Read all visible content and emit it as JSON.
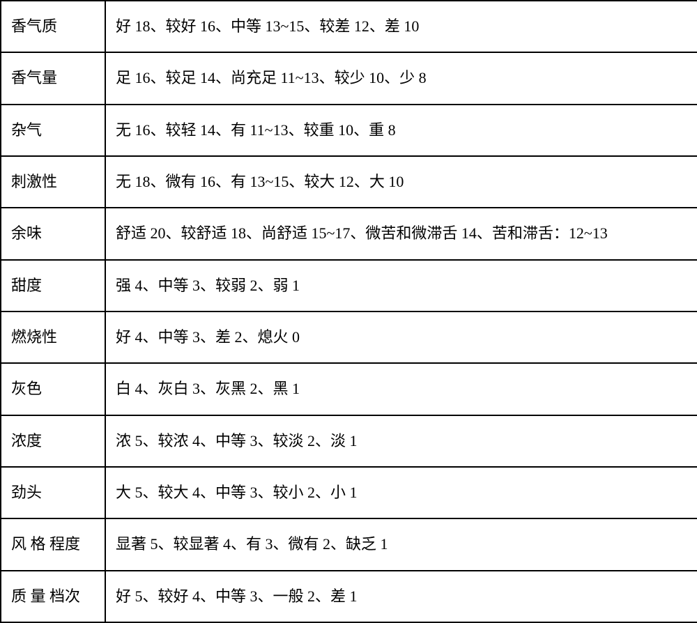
{
  "table": {
    "border_color": "#000000",
    "background_color": "#ffffff",
    "text_color": "#000000",
    "font_size": 22,
    "rows": [
      {
        "label": "香气质",
        "value": "好 18、较好 16、中等 13~15、较差 12、差 10"
      },
      {
        "label": "香气量",
        "value": "足 16、较足 14、尚充足 11~13、较少 10、少 8"
      },
      {
        "label": "杂气",
        "value": "无 16、较轻 14、有 11~13、较重 10、重 8"
      },
      {
        "label": "刺激性",
        "value": "无 18、微有 16、有 13~15、较大 12、大 10"
      },
      {
        "label": "余味",
        "value": "舒适 20、较舒适 18、尚舒适 15~17、微苦和微滞舌 14、苦和滞舌：12~13"
      },
      {
        "label": "甜度",
        "value": "强 4、中等 3、较弱 2、弱 1"
      },
      {
        "label": "燃烧性",
        "value": "好 4、中等 3、差 2、熄火 0"
      },
      {
        "label": "灰色",
        "value": "白 4、灰白 3、灰黑 2、黑 1"
      },
      {
        "label": "浓度",
        "value": "浓 5、较浓 4、中等 3、较淡 2、淡 1"
      },
      {
        "label": "劲头",
        "value": "大 5、较大 4、中等 3、较小 2、小 1"
      },
      {
        "label": "风 格 程度",
        "value": "显著 5、较显著 4、有 3、微有 2、缺乏 1"
      },
      {
        "label": "质 量 档次",
        "value": "好 5、较好 4、中等 3、一般 2、差 1"
      }
    ]
  }
}
